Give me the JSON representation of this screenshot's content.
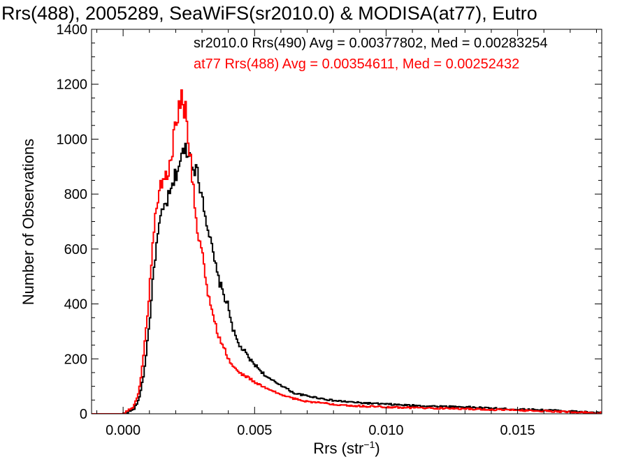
{
  "chart_data": {
    "type": "histogram",
    "title": "Rrs(488), 2005289, SeaWiFS(sr2010.0) & MODISA(at77), Eutro",
    "xlabel": "Rrs (str",
    "xlabel_sup": "−1",
    "xlabel_close": ")",
    "ylabel": "Number of Observations",
    "xlim": [
      -0.0012,
      0.0182
    ],
    "ylim": [
      0,
      1400
    ],
    "x_ticks": [
      0.0,
      0.005,
      0.01,
      0.015
    ],
    "x_tick_labels": [
      "0.000",
      "0.005",
      "0.010",
      "0.015"
    ],
    "y_ticks": [
      0,
      200,
      400,
      600,
      800,
      1000,
      1200,
      1400
    ],
    "y_tick_labels": [
      "0",
      "200",
      "400",
      "600",
      "800",
      "1000",
      "1200",
      "1400"
    ],
    "grid": false,
    "legend_position": "top-right",
    "series": [
      {
        "name": "sr2010.0 Rrs(490) Avg = 0.00377802, Med = 0.00283254",
        "color": "#000000",
        "x": [
          -0.0012,
          0.0,
          0.0004,
          0.0006,
          0.0008,
          0.001,
          0.0012,
          0.0014,
          0.0016,
          0.0018,
          0.002,
          0.0022,
          0.0024,
          0.0026,
          0.0028,
          0.003,
          0.0032,
          0.0034,
          0.0036,
          0.0038,
          0.004,
          0.0042,
          0.0044,
          0.0046,
          0.0048,
          0.005,
          0.0055,
          0.006,
          0.0065,
          0.007,
          0.008,
          0.009,
          0.01,
          0.011,
          0.012,
          0.013,
          0.014,
          0.015,
          0.016,
          0.017,
          0.018
        ],
        "values": [
          0,
          0,
          15,
          50,
          150,
          330,
          560,
          700,
          760,
          800,
          870,
          930,
          970,
          930,
          880,
          800,
          690,
          590,
          500,
          440,
          390,
          300,
          250,
          230,
          200,
          180,
          130,
          105,
          75,
          65,
          48,
          40,
          35,
          30,
          27,
          25,
          20,
          16,
          14,
          9,
          4
        ]
      },
      {
        "name": "at77 Rrs(488) Avg = 0.00354611, Med = 0.00252432",
        "color": "#ff0000",
        "x": [
          -0.0012,
          0.0,
          0.0004,
          0.0006,
          0.0008,
          0.001,
          0.0012,
          0.0014,
          0.0016,
          0.0018,
          0.002,
          0.0022,
          0.0024,
          0.0026,
          0.0028,
          0.003,
          0.0032,
          0.0034,
          0.0036,
          0.0038,
          0.004,
          0.0042,
          0.0044,
          0.0046,
          0.0048,
          0.005,
          0.0055,
          0.006,
          0.0065,
          0.007,
          0.008,
          0.009,
          0.01,
          0.011,
          0.012,
          0.013,
          0.014,
          0.015,
          0.016,
          0.017,
          0.018
        ],
        "values": [
          0,
          0,
          25,
          80,
          230,
          450,
          700,
          830,
          860,
          900,
          1060,
          1160,
          1090,
          900,
          680,
          600,
          440,
          370,
          290,
          250,
          200,
          170,
          150,
          140,
          130,
          115,
          90,
          70,
          55,
          45,
          35,
          28,
          25,
          22,
          20,
          18,
          15,
          13,
          10,
          7,
          3
        ]
      }
    ]
  }
}
